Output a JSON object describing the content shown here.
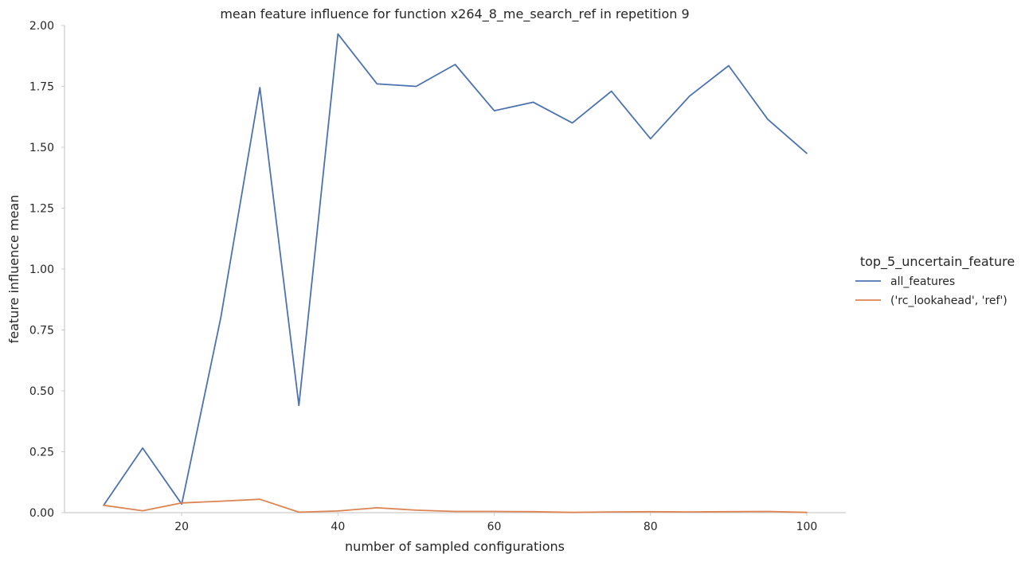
{
  "chart_data": {
    "type": "line",
    "title": "mean feature influence for function x264_8_me_search_ref in repetition 9",
    "xlabel": "number of sampled configurations",
    "ylabel": "feature influence mean",
    "xlim": [
      5,
      105
    ],
    "ylim": [
      0,
      2.0
    ],
    "xticks": [
      20,
      40,
      60,
      80,
      100
    ],
    "yticks": [
      0.0,
      0.25,
      0.5,
      0.75,
      1.0,
      1.25,
      1.5,
      1.75,
      2.0
    ],
    "ytick_labels": [
      "0.00",
      "0.25",
      "0.50",
      "0.75",
      "1.00",
      "1.25",
      "1.50",
      "1.75",
      "2.00"
    ],
    "grid": false,
    "legend": {
      "title": "top_5_uncertain_feature",
      "placement": "right"
    },
    "x": [
      10,
      15,
      20,
      25,
      30,
      35,
      40,
      45,
      50,
      55,
      60,
      65,
      70,
      75,
      80,
      85,
      90,
      95,
      100
    ],
    "series": [
      {
        "name": "all_features",
        "color": "#4c72b0",
        "values": [
          0.03,
          0.265,
          0.035,
          0.8,
          1.745,
          0.44,
          1.965,
          1.76,
          1.75,
          1.84,
          1.65,
          1.685,
          1.6,
          1.73,
          1.535,
          1.71,
          1.835,
          1.615,
          1.475
        ]
      },
      {
        "name": "('rc_lookahead', 'ref')",
        "color": "#dd8452",
        "values": [
          0.03,
          0.008,
          0.04,
          0.047,
          0.055,
          0.002,
          0.007,
          0.02,
          0.01,
          0.005,
          0.005,
          0.004,
          0.001,
          0.003,
          0.004,
          0.003,
          0.004,
          0.005,
          0.001
        ]
      }
    ]
  }
}
